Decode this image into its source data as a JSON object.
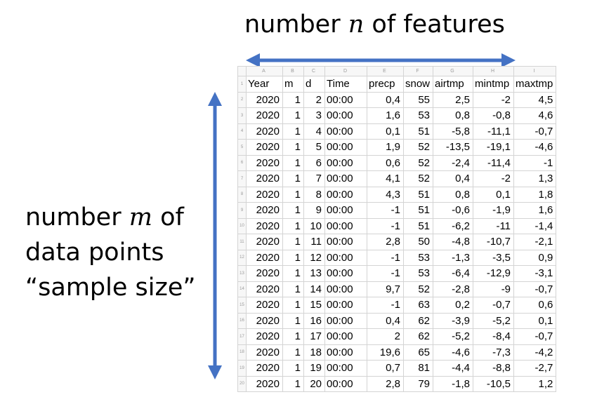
{
  "labels": {
    "top_prefix": "number ",
    "top_var": "n",
    "top_suffix": " of features",
    "left_line1_prefix": "number ",
    "left_line1_var": "m",
    "left_line1_suffix": " of",
    "left_line2": "data points",
    "left_line3": "“sample size”"
  },
  "colors": {
    "arrow": "#4472c4"
  },
  "spreadsheet": {
    "column_letters": [
      "A",
      "B",
      "C",
      "D",
      "E",
      "F",
      "G",
      "H",
      "I"
    ],
    "headers": [
      "Year",
      "m",
      "d",
      "Time",
      "precp",
      "snow",
      "airtmp",
      "mintmp",
      "maxtmp"
    ],
    "row_numbers": [
      "1",
      "2",
      "3",
      "4",
      "5",
      "6",
      "7",
      "8",
      "9",
      "10",
      "11",
      "12",
      "13",
      "14",
      "15",
      "16",
      "17",
      "18",
      "19",
      "20"
    ],
    "rows": [
      [
        "2020",
        "1",
        "2",
        "00:00",
        "0,4",
        "55",
        "2,5",
        "-2",
        "4,5"
      ],
      [
        "2020",
        "1",
        "3",
        "00:00",
        "1,6",
        "53",
        "0,8",
        "-0,8",
        "4,6"
      ],
      [
        "2020",
        "1",
        "4",
        "00:00",
        "0,1",
        "51",
        "-5,8",
        "-11,1",
        "-0,7"
      ],
      [
        "2020",
        "1",
        "5",
        "00:00",
        "1,9",
        "52",
        "-13,5",
        "-19,1",
        "-4,6"
      ],
      [
        "2020",
        "1",
        "6",
        "00:00",
        "0,6",
        "52",
        "-2,4",
        "-11,4",
        "-1"
      ],
      [
        "2020",
        "1",
        "7",
        "00:00",
        "4,1",
        "52",
        "0,4",
        "-2",
        "1,3"
      ],
      [
        "2020",
        "1",
        "8",
        "00:00",
        "4,3",
        "51",
        "0,8",
        "0,1",
        "1,8"
      ],
      [
        "2020",
        "1",
        "9",
        "00:00",
        "-1",
        "51",
        "-0,6",
        "-1,9",
        "1,6"
      ],
      [
        "2020",
        "1",
        "10",
        "00:00",
        "-1",
        "51",
        "-6,2",
        "-11",
        "-1,4"
      ],
      [
        "2020",
        "1",
        "11",
        "00:00",
        "2,8",
        "50",
        "-4,8",
        "-10,7",
        "-2,1"
      ],
      [
        "2020",
        "1",
        "12",
        "00:00",
        "-1",
        "53",
        "-1,3",
        "-3,5",
        "0,9"
      ],
      [
        "2020",
        "1",
        "13",
        "00:00",
        "-1",
        "53",
        "-6,4",
        "-12,9",
        "-3,1"
      ],
      [
        "2020",
        "1",
        "14",
        "00:00",
        "9,7",
        "52",
        "-2,8",
        "-9",
        "-0,7"
      ],
      [
        "2020",
        "1",
        "15",
        "00:00",
        "-1",
        "63",
        "0,2",
        "-0,7",
        "0,6"
      ],
      [
        "2020",
        "1",
        "16",
        "00:00",
        "0,4",
        "62",
        "-3,9",
        "-5,2",
        "0,1"
      ],
      [
        "2020",
        "1",
        "17",
        "00:00",
        "2",
        "62",
        "-5,2",
        "-8,4",
        "-0,7"
      ],
      [
        "2020",
        "1",
        "18",
        "00:00",
        "19,6",
        "65",
        "-4,6",
        "-7,3",
        "-4,2"
      ],
      [
        "2020",
        "1",
        "19",
        "00:00",
        "0,7",
        "81",
        "-4,4",
        "-8,8",
        "-2,7"
      ],
      [
        "2020",
        "1",
        "20",
        "00:00",
        "2,8",
        "79",
        "-1,8",
        "-10,5",
        "1,2"
      ]
    ]
  }
}
